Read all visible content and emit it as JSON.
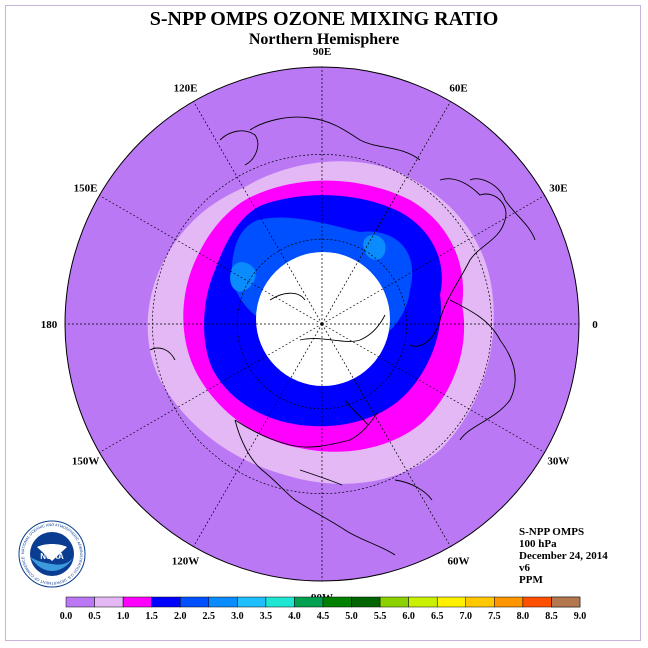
{
  "title": "S-NPP OMPS OZONE MIXING RATIO",
  "subtitle": "Northern Hemisphere",
  "longitude_labels": [
    "120E",
    "90E",
    "60E",
    "30E",
    "0",
    "30W",
    "60W",
    "90W",
    "120W",
    "150W",
    "180",
    "150E"
  ],
  "info": {
    "instrument": "S-NPP OMPS",
    "level": "100 hPa",
    "date": "December 24, 2014",
    "version": "v6",
    "units": "PPM"
  },
  "logo": {
    "text": "NOAA",
    "ring_text": "NATIONAL OCEANIC AND ATMOSPHERIC ADMINISTRATION U.S. DEPARTMENT OF COMMERCE"
  },
  "colorbar": {
    "tick_labels": [
      "0.0",
      "0.5",
      "1.0",
      "1.5",
      "2.0",
      "2.5",
      "3.0",
      "3.5",
      "4.0",
      "4.5",
      "5.0",
      "5.5",
      "6.0",
      "6.5",
      "7.0",
      "7.5",
      "8.0",
      "8.5",
      "9.0"
    ],
    "colors": [
      "#bb78f5",
      "#e3b8f5",
      "#ff00ff",
      "#0000ff",
      "#0050ff",
      "#0a8cff",
      "#20c0ff",
      "#1ee6d2",
      "#00a050",
      "#008000",
      "#006400",
      "#8cd200",
      "#c8f000",
      "#fff000",
      "#ffc800",
      "#ff9600",
      "#ff5000",
      "#ff0000",
      "#b47850"
    ]
  },
  "map_colors": {
    "background_disk": "#bb78f5",
    "band_light": "#e3b8f5",
    "band_magenta": "#ff00ff",
    "band_blue": "#0000ff",
    "band_mid_blue": "#0050ff",
    "band_light_blue": "#0a8cff",
    "missing": "#ffffff"
  }
}
